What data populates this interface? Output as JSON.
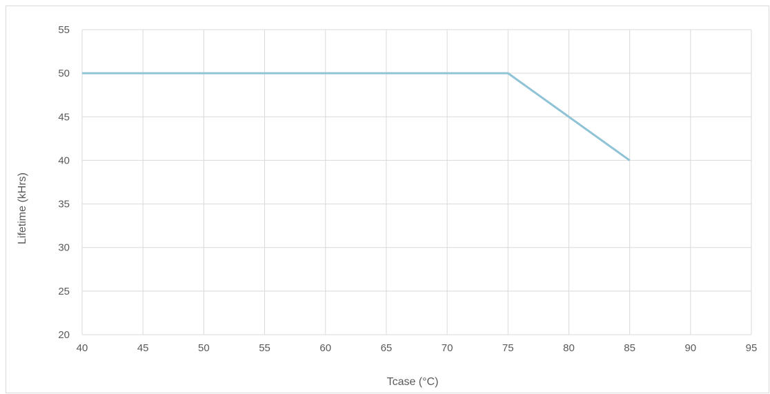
{
  "chart_data": {
    "type": "line",
    "title": "",
    "xlabel": "Tcase (°C)",
    "ylabel": "Lifetime (kHrs)",
    "xlim": [
      40,
      95
    ],
    "ylim": [
      20,
      55
    ],
    "xticks": [
      40,
      45,
      50,
      55,
      60,
      65,
      70,
      75,
      80,
      85,
      90,
      95
    ],
    "yticks": [
      20,
      25,
      30,
      35,
      40,
      45,
      50,
      55
    ],
    "grid": true,
    "legend": "none",
    "series": [
      {
        "color": "#8fc3d6",
        "x": [
          40,
          75,
          85
        ],
        "y": [
          50,
          50,
          40
        ]
      }
    ]
  }
}
